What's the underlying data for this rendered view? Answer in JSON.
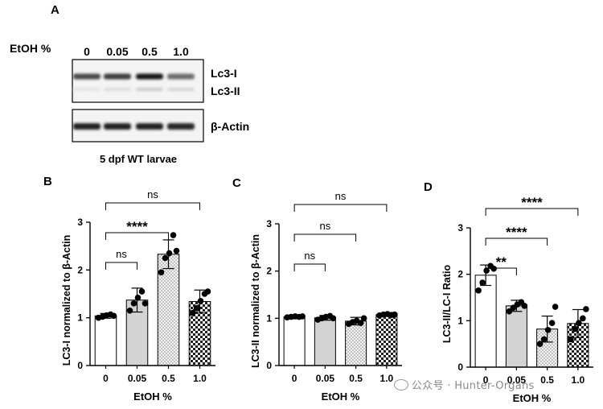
{
  "blot": {
    "panel_label": "A",
    "condition_label": "EtOH %",
    "lanes": [
      "0",
      "0.05",
      "0.5",
      "1.0"
    ],
    "band_labels": [
      "Lc3-I",
      "Lc3-II",
      "β-Actin"
    ],
    "caption": "5 dpf WT larvae",
    "band_intensity": {
      "Lc3-I": [
        0.78,
        0.82,
        0.98,
        0.62
      ],
      "Lc3-II": [
        0.12,
        0.15,
        0.22,
        0.18
      ],
      "β-Actin": [
        0.95,
        0.95,
        0.95,
        0.92
      ]
    }
  },
  "chart_data": [
    {
      "type": "bar",
      "panel_label": "B",
      "categories": [
        "0",
        "0.05",
        "0.5",
        "1.0"
      ],
      "values": [
        1.04,
        1.37,
        2.33,
        1.34
      ],
      "errors": [
        0.05,
        0.25,
        0.3,
        0.24
      ],
      "points": [
        [
          1.0,
          1.02,
          1.05,
          1.07,
          1.04
        ],
        [
          1.15,
          1.3,
          1.42,
          1.55,
          1.3
        ],
        [
          1.95,
          2.25,
          2.35,
          2.73,
          2.4
        ],
        [
          1.1,
          1.2,
          1.35,
          1.5,
          1.55
        ]
      ],
      "patterns": [
        "white",
        "gray",
        "dots",
        "checker"
      ],
      "xlabel": "EtOH %",
      "ylabel": "LC3-I normalized to β-Actin",
      "ylim": [
        0,
        3
      ],
      "yticks": [
        "0",
        "1",
        "2",
        "3"
      ],
      "comparisons": [
        {
          "from": 0,
          "to": 1,
          "label": "ns"
        },
        {
          "from": 0,
          "to": 2,
          "label": "****"
        },
        {
          "from": 0,
          "to": 3,
          "label": "ns"
        }
      ]
    },
    {
      "type": "bar",
      "panel_label": "C",
      "categories": [
        "0",
        "0.05",
        "0.5",
        "1.0"
      ],
      "values": [
        1.03,
        1.01,
        0.94,
        1.08
      ],
      "errors": [
        0.04,
        0.05,
        0.08,
        0.03
      ],
      "points": [
        [
          1.02,
          1.03,
          1.04,
          1.03,
          1.04
        ],
        [
          0.97,
          1.0,
          1.03,
          1.05,
          1.0
        ],
        [
          0.88,
          0.92,
          0.95,
          0.9,
          1.0
        ],
        [
          1.06,
          1.08,
          1.09,
          1.07,
          1.08
        ]
      ],
      "patterns": [
        "white",
        "gray",
        "dots",
        "checker"
      ],
      "xlabel": "EtOH %",
      "ylabel": "LC3-II normalized to β-Actin",
      "ylim": [
        0,
        3
      ],
      "yticks": [
        "0",
        "1",
        "2",
        "3"
      ],
      "comparisons": [
        {
          "from": 0,
          "to": 1,
          "label": "ns"
        },
        {
          "from": 0,
          "to": 2,
          "label": "ns"
        },
        {
          "from": 0,
          "to": 3,
          "label": "ns"
        }
      ]
    },
    {
      "type": "bar",
      "panel_label": "D",
      "categories": [
        "0",
        "0.05",
        "0.5",
        "1.0"
      ],
      "values": [
        1.98,
        1.32,
        0.82,
        0.94
      ],
      "errors": [
        0.22,
        0.12,
        0.28,
        0.3
      ],
      "points": [
        [
          1.65,
          1.82,
          2.08,
          2.18,
          2.12
        ],
        [
          1.2,
          1.28,
          1.35,
          1.4,
          1.32
        ],
        [
          0.5,
          0.6,
          0.8,
          0.95,
          1.3
        ],
        [
          0.6,
          0.82,
          0.95,
          1.05,
          1.25
        ]
      ],
      "patterns": [
        "white",
        "gray",
        "dots",
        "checker"
      ],
      "xlabel": "EtOH %",
      "ylabel": "LC3-II/LC-I Ratio",
      "ylim": [
        0,
        3
      ],
      "yticks": [
        "0",
        "1",
        "2",
        "3"
      ],
      "comparisons": [
        {
          "from": 0,
          "to": 1,
          "label": "**"
        },
        {
          "from": 0,
          "to": 2,
          "label": "****"
        },
        {
          "from": 0,
          "to": 3,
          "label": "****"
        }
      ]
    }
  ],
  "watermark": {
    "text": "公众号 · Hunter-Organs"
  }
}
